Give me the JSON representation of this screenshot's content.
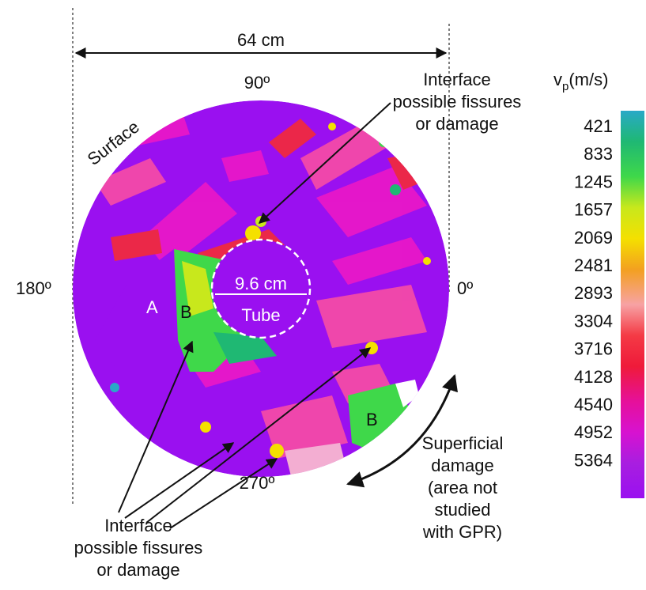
{
  "dimension_label": "64 cm",
  "angles": {
    "top": "90º",
    "left": "180º",
    "right": "0º",
    "bottom": "270º"
  },
  "surface_label": "Surface",
  "tube": {
    "diameter_label": "9.6 cm",
    "label": "Tube"
  },
  "regions": {
    "a": "A",
    "b1": "B",
    "b2": "B"
  },
  "annotation_top": [
    "Interface",
    "possible fissures",
    "or damage"
  ],
  "annotation_bottom": [
    "Interface",
    "possible fissures",
    "or damage"
  ],
  "annotation_right": [
    "Superficial",
    "damage",
    "(area not",
    "studied",
    "with GPR)"
  ],
  "colorbar": {
    "title_main": "v",
    "title_sub": "p",
    "title_unit": "(m/s)",
    "ticks": [
      "421",
      "833",
      "1245",
      "1657",
      "2069",
      "2481",
      "2893",
      "3304",
      "3716",
      "4128",
      "4540",
      "4952",
      "5364"
    ],
    "colors": [
      "#29a9c7",
      "#1fb873",
      "#3fd84a",
      "#c8e81c",
      "#f4e000",
      "#f3a020",
      "#f7a2a4",
      "#f43a45",
      "#ef1a3a",
      "#e6109a",
      "#d712d0",
      "#a81ee0",
      "#9a10f0"
    ]
  },
  "palette": {
    "purple": "#9a10f0",
    "magenta": "#e818c8",
    "pink": "#f44aa8",
    "red": "#f02a40",
    "green": "#3fd84a",
    "yellow": "#f4e000"
  }
}
